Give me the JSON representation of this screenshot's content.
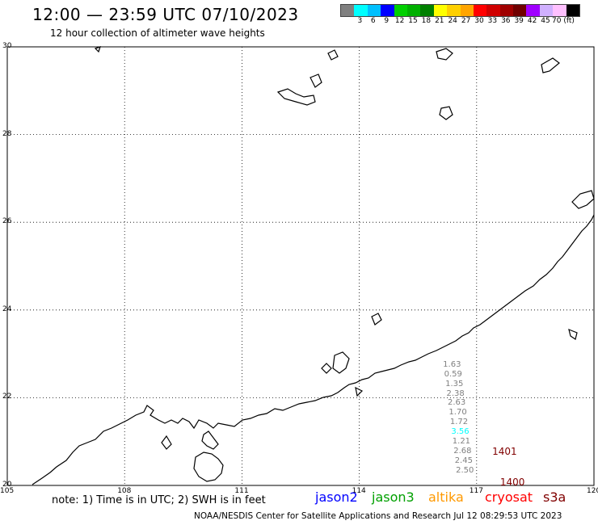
{
  "title": "12:00 — 23:59 UTC 07/10/2023",
  "subtitle": "12 hour collection of altimeter wave heights",
  "legend": {
    "colors": [
      "#808080",
      "#00ffff",
      "#00c0ff",
      "#0000ff",
      "#00d000",
      "#00b000",
      "#008000",
      "#ffff00",
      "#ffd000",
      "#ffa500",
      "#ff0000",
      "#d00000",
      "#a00000",
      "#700000",
      "#a000ff",
      "#d0b0ff",
      "#ffc0ff",
      "#000000"
    ],
    "labels": [
      "3",
      "6",
      "9",
      "12",
      "15",
      "18",
      "21",
      "24",
      "27",
      "30",
      "33",
      "36",
      "39",
      "42",
      "45",
      "70 (ft)"
    ]
  },
  "map": {
    "lon_min": 105,
    "lon_max": 120,
    "lat_min": 20,
    "lat_max": 30,
    "lat_labels": [
      "20",
      "22",
      "24",
      "26",
      "28",
      "30"
    ],
    "lon_labels": [
      "105",
      "108",
      "111",
      "114",
      "117",
      "120"
    ]
  },
  "swh_points": [
    {
      "value": "1.63",
      "color": "#808080",
      "lon": 116.6,
      "lat": 22.75
    },
    {
      "value": "0.59",
      "color": "#808080",
      "lon": 116.63,
      "lat": 22.53
    },
    {
      "value": "1.35",
      "color": "#808080",
      "lon": 116.66,
      "lat": 22.31
    },
    {
      "value": "2.38",
      "color": "#808080",
      "lon": 116.69,
      "lat": 22.09
    },
    {
      "value": "2.63",
      "color": "#808080",
      "lon": 116.72,
      "lat": 21.87
    },
    {
      "value": "1.70",
      "color": "#808080",
      "lon": 116.75,
      "lat": 21.65
    },
    {
      "value": "1.72",
      "color": "#808080",
      "lon": 116.78,
      "lat": 21.43
    },
    {
      "value": "3.56",
      "color": "#00ffff",
      "lon": 116.81,
      "lat": 21.21
    },
    {
      "value": "1.21",
      "color": "#808080",
      "lon": 116.84,
      "lat": 20.99
    },
    {
      "value": "2.68",
      "color": "#808080",
      "lon": 116.87,
      "lat": 20.77
    },
    {
      "value": "2.45",
      "color": "#808080",
      "lon": 116.9,
      "lat": 20.55
    },
    {
      "value": "2.50",
      "color": "#808080",
      "lon": 116.93,
      "lat": 20.33
    }
  ],
  "pass_labels": [
    {
      "text": "1401",
      "color": "#800000",
      "lon": 117.4,
      "lat": 20.78
    },
    {
      "text": "1400",
      "color": "#800000",
      "lon": 117.6,
      "lat": 20.08
    }
  ],
  "note": "note: 1) Time is in UTC; 2) SWH is in feet",
  "missions": [
    {
      "name": "jason2",
      "color": "#0000ff"
    },
    {
      "name": "jason3",
      "color": "#00a000"
    },
    {
      "name": "altika",
      "color": "#ff9900"
    },
    {
      "name": "cryosat",
      "color": "#ff0000"
    },
    {
      "name": "s3a",
      "color": "#800000"
    }
  ],
  "credit": "NOAA/NESDIS Center for Satellite Applications and Research    Jul 12 08:29:53 UTC 2023"
}
